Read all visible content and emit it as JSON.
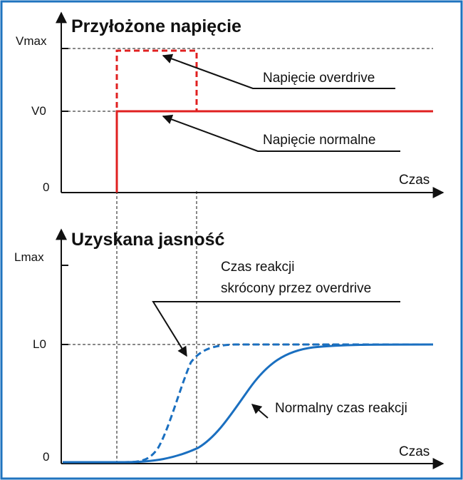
{
  "colors": {
    "frame": "#1f73bf",
    "voltage": "#e02020",
    "luminance": "#1a6fc0",
    "ink": "#111111"
  },
  "top_panel": {
    "title": "Przyłożone napięcie",
    "y_ticks": [
      "Vmax",
      "V0",
      "0"
    ],
    "x_label": "Czas",
    "annotations": {
      "overdrive": "Napięcie overdrive",
      "normal": "Napięcie normalne"
    }
  },
  "bottom_panel": {
    "title": "Uzyskana jasność",
    "y_ticks": [
      "Lmax",
      "L0",
      "0"
    ],
    "x_label": "Czas",
    "annotations": {
      "overdrive_line1": "Czas reakcji",
      "overdrive_line2": "skrócony przez overdrive",
      "normal": "Normalny czas reakcji"
    }
  }
}
